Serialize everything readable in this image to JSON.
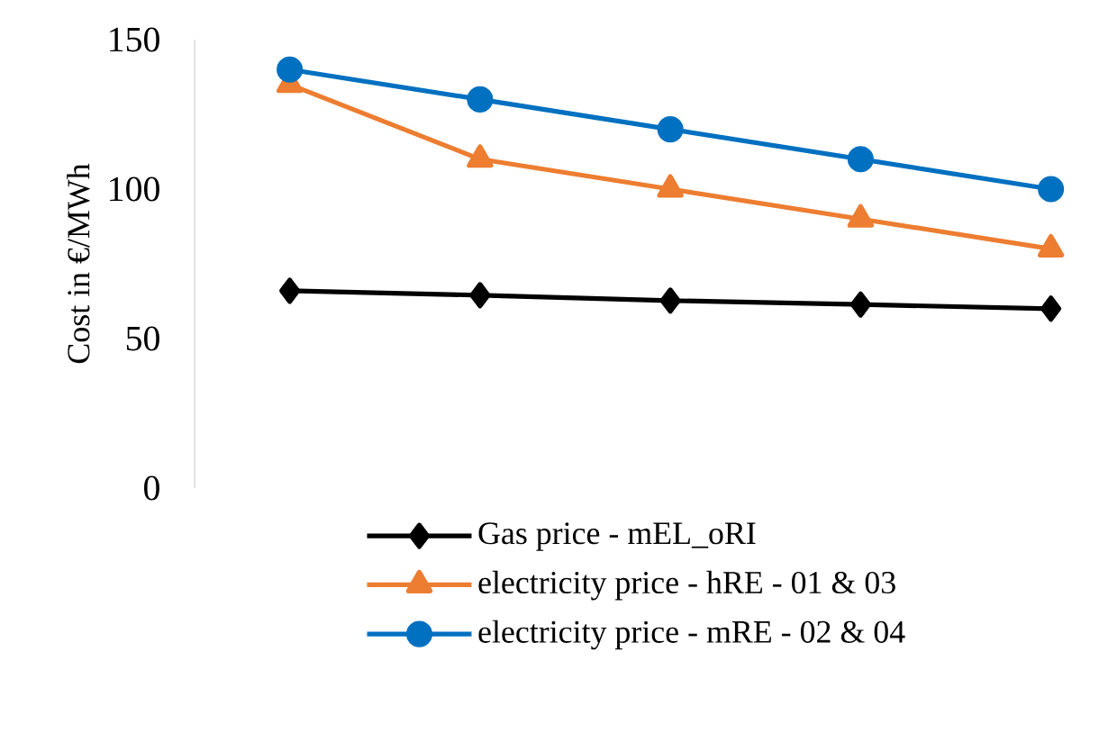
{
  "chart_data": {
    "type": "line",
    "ylabel": "Cost in €/MWh",
    "categories": [
      null,
      null,
      null,
      null,
      null
    ],
    "ylim": [
      0,
      150
    ],
    "yticks": [
      0,
      50,
      100,
      150
    ],
    "grid": false,
    "legend": "bottom",
    "tick_labels": "y",
    "line_style": "solid",
    "series": [
      {
        "name": "Gas price - mEL_oRI",
        "color": "#000000",
        "marker": "diamond",
        "values": [
          66,
          64.5,
          62.7,
          61.4,
          60
        ]
      },
      {
        "name": "electricity price - hRE - 01 & 03",
        "color": "#ed7d31",
        "marker": "triangle",
        "values": [
          135,
          110,
          100,
          90,
          80
        ]
      },
      {
        "name": "electricity price - mRE - 02 & 04",
        "color": "#0070c0",
        "marker": "circle",
        "values": [
          140,
          130,
          120,
          110,
          100
        ]
      }
    ]
  }
}
